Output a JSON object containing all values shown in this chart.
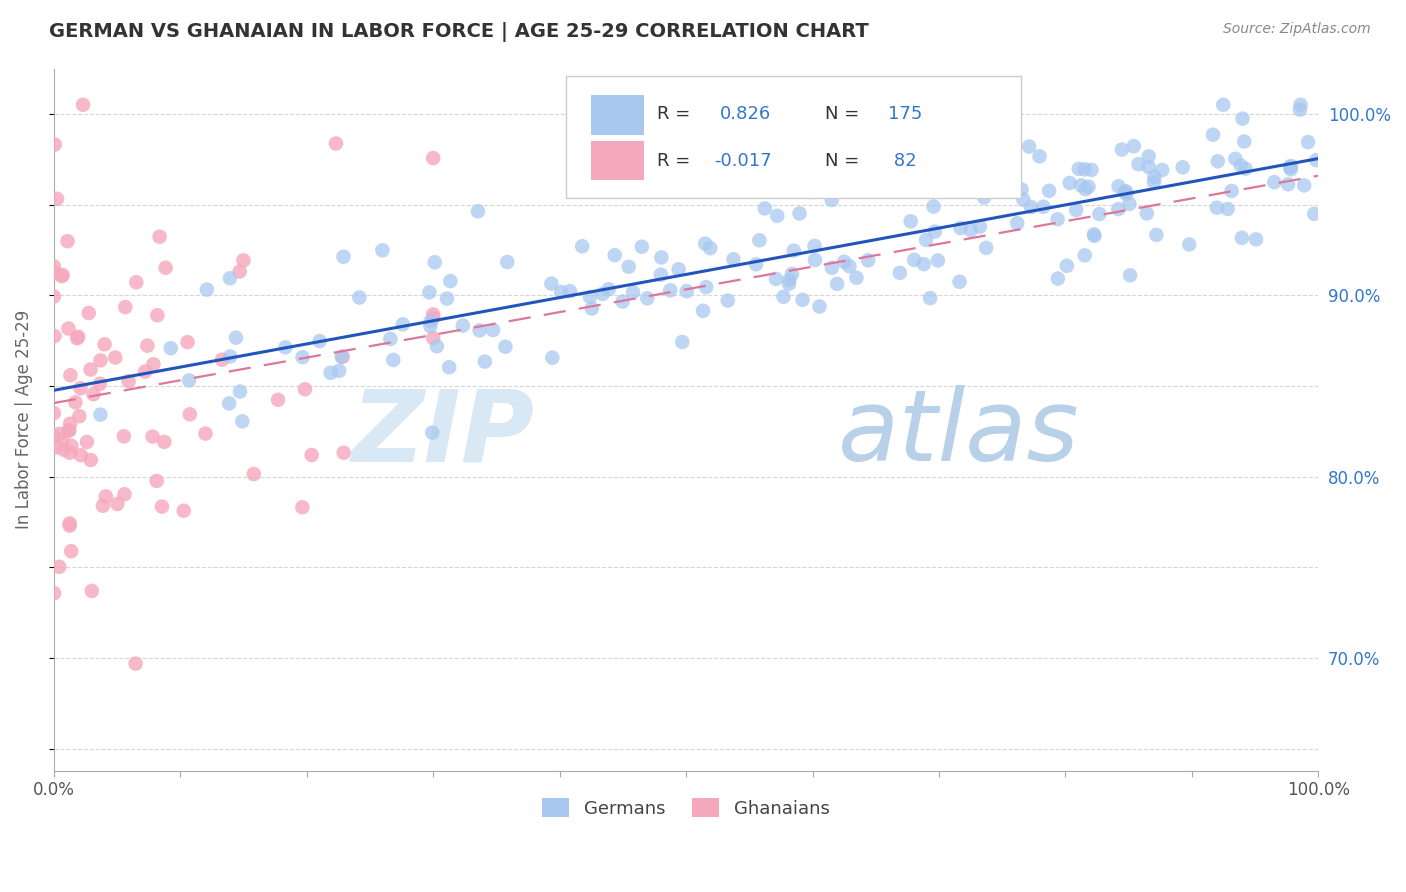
{
  "title": "GERMAN VS GHANAIAN IN LABOR FORCE | AGE 25-29 CORRELATION CHART",
  "source_text": "Source: ZipAtlas.com",
  "ylabel": "In Labor Force | Age 25-29",
  "xmin": 0.0,
  "xmax": 1.0,
  "ymin": 0.638,
  "ymax": 1.025,
  "yticks": [
    0.65,
    0.7,
    0.75,
    0.8,
    0.85,
    0.9,
    0.95,
    1.0
  ],
  "ytick_labels_right": [
    "",
    "70.0%",
    "",
    "80.0%",
    "",
    "90.0%",
    "",
    "100.0%"
  ],
  "german_R": 0.826,
  "german_N": 175,
  "ghanaian_R": -0.017,
  "ghanaian_N": 82,
  "german_color": "#A8C8F0",
  "ghanaian_color": "#F5A8BC",
  "german_line_color": "#2255BB",
  "ghanaian_line_color": "#DD7799",
  "bg_color": "#FFFFFF",
  "grid_color": "#CCCCCC",
  "title_color": "#333333",
  "axis_label_color": "#666666",
  "legend_text_color": "#333333",
  "legend_value_color": "#3377CC",
  "watermark_zip_color": "#D8E8F4",
  "watermark_atlas_color": "#B8D0E8",
  "source_color": "#888888"
}
